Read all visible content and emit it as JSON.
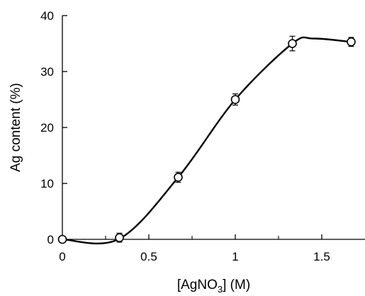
{
  "chart_data": {
    "type": "scatter",
    "xlabel": {
      "main": "[AgNO",
      "sub": "3",
      "tail": "] (M)"
    },
    "ylabel": "Ag content (%)",
    "xlim": [
      0,
      1.75
    ],
    "ylim": [
      0,
      40
    ],
    "xticks": [
      0,
      0.5,
      1,
      1.5
    ],
    "xtick_labels": [
      "0",
      "0.5",
      "1",
      "1.5"
    ],
    "yticks": [
      0,
      10,
      20,
      30,
      40
    ],
    "ytick_labels": [
      "0",
      "10",
      "20",
      "30",
      "40"
    ],
    "grid": false,
    "legend": "none",
    "series": [
      {
        "x": [
          0,
          0.33,
          0.67,
          1.0,
          1.33,
          1.67
        ],
        "y": [
          0,
          0.3,
          11.1,
          25.0,
          35.0,
          35.3
        ],
        "error": [
          0,
          0.8,
          0.9,
          1.0,
          1.3,
          0.8
        ],
        "marker": "open-circle",
        "color": "#000000"
      }
    ],
    "fit_curve": {
      "x": [
        0,
        0.33,
        0.67,
        1.0,
        1.33,
        1.45,
        1.67
      ],
      "y": [
        0,
        0.1,
        11.1,
        25.0,
        35.0,
        35.9,
        35.3
      ]
    }
  }
}
